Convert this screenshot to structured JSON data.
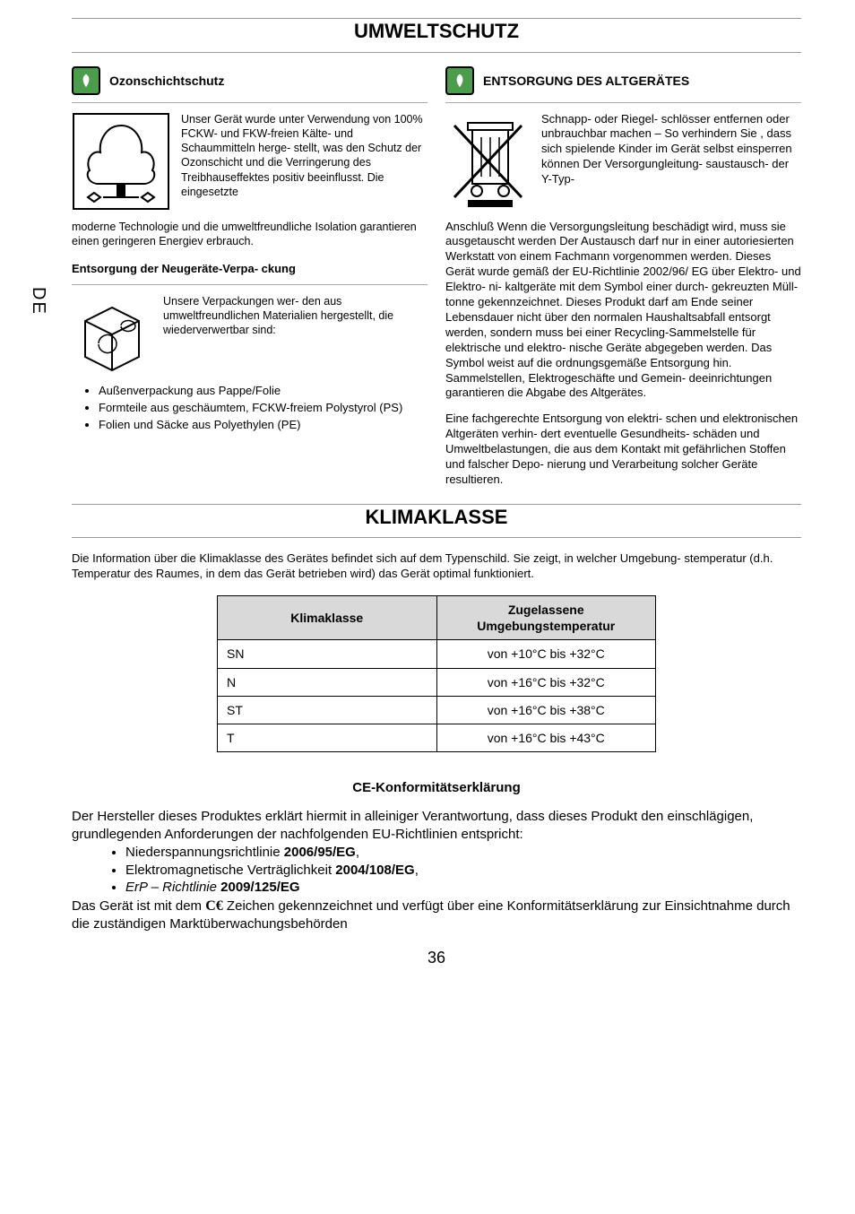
{
  "sideTab": "DE",
  "pageNumber": "36",
  "section1": {
    "title": "UMWELTSCHUTZ",
    "left": {
      "heading1": "Ozonschichtschutz",
      "text1": "Unser Gerät wurde unter Verwendung von 100% FCKW- und FKW-freien Kälte- und Schaummitteln herge- stellt, was den Schutz der Ozonschicht und die Verringerung des Treibhauseffektes positiv beeinflusst. Die eingesetzte",
      "text1b": "moderne Technologie und die umweltfreundliche Isolation garantieren  einen geringeren Energiev erbrauch.",
      "heading2": "Entsorgung der Neugeräte-Verpa- ckung",
      "text2": "Unsere Verpackungen wer- den aus umweltfreundlichen Materialien hergestellt, die wiederverwertbar sind:",
      "bullets": [
        "Außenverpackung aus Pappe/Folie",
        "Formteile aus geschäumtem, FCKW-freiem Polystyrol (PS)",
        "Folien und Säcke aus Polyethylen (PE)"
      ]
    },
    "right": {
      "heading": "ENTSORGUNG DES ALTGERÄTES",
      "text1": "Schnapp- oder Riegel- schlösser entfernen oder unbrauchbar machen – So verhindern Sie , dass sich spielende Kinder  im Gerät selbst einsperren können Der Versorgungleitung- saustausch- der Y-Typ-",
      "text2": "Anschluß Wenn die Versorgungsleitung beschädigt wird, muss sie ausgetauscht werden Der Austausch darf nur in einer autoriesierten Werkstatt von einem Fachmann vorgenommen werden. Dieses Gerät  wurde  gemäß der   EU-Richtlinie 2002/96/ EG über Elektro- und Elektro- ni- kaltgeräte mit dem Symbol einer durch- gekreuzten Müll- tonne gekennzeichnet. Dieses Produkt darf am Ende seiner Lebensdauer  nicht  über  den normalen Haushaltsabfall entsorgt werden, sondern muss  bei  einer  Recycling-Sammelstelle für elektrische und elektro- nische Geräte abgegeben werden.   Das Symbol weist auf die ordnungsgemäße Entsorgung  hin.  Sammelstellen,  Elektrogeschäfte und Gemein- deeinrichtungen garantieren   die Abgabe des Altgerätes.",
      "text3": "Eine fachgerechte Entsorgung von elektri- schen und elektronischen Altgeräten verhin- dert eventuelle Gesundheits- schäden und Umweltbelastungen, die aus dem Kontakt mit gefährlichen Stoffen und falscher Depo- nierung und Verarbeitung solcher Geräte resultieren."
    }
  },
  "section2": {
    "title": "KLIMAKLASSE",
    "intro": "Die Information über die Klimaklasse des Gerätes befindet sich auf dem Typenschild. Sie zeigt, in welcher Umgebung- stemperatur (d.h. Temperatur des Raumes, in dem das Gerät betrieben wird) das Gerät optimal funktioniert.",
    "table": {
      "headers": [
        "Klimaklasse",
        "Zugelassene Umgebungstemperatur"
      ],
      "rows": [
        [
          "SN",
          "von +10°C bis +32°C"
        ],
        [
          "N",
          "von +16°C bis +32°C"
        ],
        [
          "ST",
          "von +16°C bis +38°C"
        ],
        [
          "T",
          "von +16°C bis +43°C"
        ]
      ]
    }
  },
  "ce": {
    "title": "CE-Konformitätserklärung",
    "intro": "Der Hersteller dieses Produktes erklärt hiermit in alleiniger Verantwortung, dass dieses Produkt den einschlägigen, grundlegenden Anforderungen der nachfolgenden EU-Richtlinien entspricht:",
    "items": [
      {
        "text": "Niederspannungsrichtlinie ",
        "bold": "2006/95/EG",
        "suffix": ","
      },
      {
        "text": "Elektromagnetische Verträglichkeit ",
        "bold": "2004/108/EG",
        "suffix": ","
      },
      {
        "italic": "ErP – Richtlinie  ",
        "bold": "2009/125/EG",
        "suffix": ""
      }
    ],
    "outro1": "Das Gerät ist mit dem ",
    "outro2": " Zeichen gekennzeichnet und verfügt über eine Konformitätserklärung zur Einsichtnahme durch die zuständigen Marktüberwachungsbehörden"
  },
  "colors": {
    "leafBg": "#4a9d4a",
    "headerBg": "#d9d9d9",
    "border": "#000000",
    "divider": "#999999"
  }
}
